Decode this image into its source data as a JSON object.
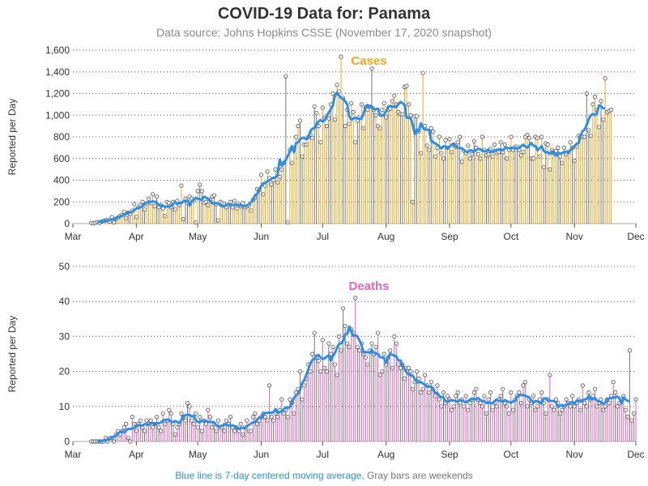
{
  "title": "COVID-19 Data for: Panama",
  "subtitle": "Data source: Johns Hopkins CSSE (November 17, 2020 snapshot)",
  "footnote": {
    "blue_part": "Blue line is 7-day centered moving average,",
    "gray_part": "Gray bars are weekends"
  },
  "colors": {
    "cases": "#f0a81e",
    "deaths": "#e466b4",
    "average": "#2b8ee8",
    "weekend": "#777777"
  },
  "chart_data": [
    {
      "type": "bar",
      "title": "Cases",
      "ylabel": "Reported per Day",
      "ylim": [
        0,
        1600
      ],
      "yticks": [
        "0",
        "200",
        "400",
        "600",
        "800",
        "1,000",
        "1,200",
        "1,400",
        "1,600"
      ],
      "ytick_values": [
        0,
        200,
        400,
        600,
        800,
        1000,
        1200,
        1400,
        1600
      ],
      "xlim": [
        "2020-03-01",
        "2020-12-01"
      ],
      "xticks": [
        "Mar",
        "Apr",
        "May",
        "Jun",
        "Jul",
        "Aug",
        "Sep",
        "Oct",
        "Nov",
        "Dec"
      ],
      "xtick_dates": [
        "2020-03-01",
        "2020-04-01",
        "2020-05-01",
        "2020-06-01",
        "2020-07-01",
        "2020-08-01",
        "2020-09-01",
        "2020-10-01",
        "2020-11-01",
        "2020-12-01"
      ],
      "grid": "horizontal dotted",
      "first_date": "2020-03-10",
      "values": [
        5,
        3,
        8,
        14,
        5,
        20,
        25,
        30,
        35,
        20,
        60,
        10,
        45,
        55,
        70,
        80,
        110,
        50,
        100,
        90,
        120,
        180,
        60,
        150,
        170,
        200,
        130,
        180,
        230,
        190,
        270,
        160,
        250,
        150,
        170,
        140,
        70,
        200,
        190,
        150,
        200,
        130,
        210,
        170,
        350,
        40,
        230,
        190,
        250,
        230,
        210,
        10,
        300,
        360,
        300,
        190,
        200,
        170,
        220,
        250,
        260,
        180,
        30,
        200,
        190,
        180,
        150,
        170,
        200,
        150,
        210,
        140,
        180,
        160,
        190,
        150,
        160,
        170,
        120,
        220,
        240,
        320,
        310,
        450,
        270,
        350,
        480,
        420,
        360,
        400,
        500,
        380,
        430,
        500,
        560,
        1360,
        10,
        680,
        560,
        700,
        800,
        900,
        950,
        620,
        730,
        730,
        800,
        820,
        790,
        1080,
        1020,
        900,
        750,
        1070,
        980,
        900,
        970,
        1100,
        1200,
        960,
        1280,
        1220,
        1540,
        1160,
        900,
        1050,
        920,
        1110,
        1030,
        750,
        950,
        980,
        1100,
        880,
        1070,
        1050,
        1080,
        1430,
        1050,
        1000,
        900,
        880,
        1050,
        1110,
        980,
        1050,
        1060,
        1130,
        1180,
        1100,
        1030,
        1010,
        1010,
        1260,
        1270,
        1100,
        1000,
        200,
        990,
        990,
        850,
        650,
        1390,
        900,
        720,
        680,
        880,
        850,
        620,
        700,
        800,
        650,
        600,
        770,
        700,
        780,
        660,
        730,
        710,
        750,
        800,
        570,
        670,
        650,
        720,
        600,
        640,
        760,
        700,
        640,
        600,
        800,
        680,
        630,
        640,
        690,
        620,
        730,
        650,
        660,
        750,
        660,
        730,
        600,
        680,
        800,
        680,
        710,
        710,
        680,
        630,
        660,
        800,
        820,
        790,
        600,
        600,
        800,
        790,
        620,
        800,
        520,
        740,
        730,
        500,
        680,
        650,
        670,
        700,
        620,
        560,
        700,
        640,
        660,
        750,
        700,
        580,
        710,
        810,
        800,
        800,
        800,
        1200,
        860,
        810,
        1100,
        1170,
        1050,
        890,
        1130,
        960,
        1340,
        1030,
        1040,
        1050
      ]
    },
    {
      "type": "bar",
      "title": "Deaths",
      "ylabel": "Reported per Day",
      "ylim": [
        0,
        50
      ],
      "yticks": [
        "0",
        "10",
        "20",
        "30",
        "40",
        "50"
      ],
      "ytick_values": [
        0,
        10,
        20,
        30,
        40,
        50
      ],
      "xlim": [
        "2020-03-01",
        "2020-12-01"
      ],
      "xticks": [
        "Mar",
        "Apr",
        "May",
        "Jun",
        "Jul",
        "Aug",
        "Sep",
        "Oct",
        "Nov",
        "Dec"
      ],
      "xtick_dates": [
        "2020-03-01",
        "2020-04-01",
        "2020-05-01",
        "2020-06-01",
        "2020-07-01",
        "2020-08-01",
        "2020-09-01",
        "2020-10-01",
        "2020-11-01",
        "2020-12-01"
      ],
      "grid": "horizontal dotted",
      "first_date": "2020-03-10",
      "values": [
        0,
        0,
        0,
        0,
        0,
        0,
        0,
        1,
        0,
        1,
        1,
        0,
        2,
        3,
        2,
        3,
        4,
        5,
        1,
        0,
        7,
        5,
        3,
        5,
        6,
        4,
        3,
        6,
        5,
        6,
        4,
        5,
        7,
        4,
        3,
        8,
        5,
        6,
        9,
        8,
        5,
        2,
        4,
        5,
        8,
        7,
        6,
        11,
        10,
        6,
        5,
        8,
        4,
        7,
        3,
        6,
        5,
        9,
        7,
        4,
        5,
        3,
        6,
        4,
        4,
        3,
        6,
        5,
        7,
        4,
        3,
        4,
        3,
        5,
        2,
        4,
        6,
        3,
        3,
        7,
        8,
        5,
        6,
        7,
        8,
        7,
        6,
        16,
        7,
        6,
        8,
        7,
        9,
        12,
        8,
        9,
        7,
        12,
        11,
        8,
        14,
        15,
        20,
        12,
        16,
        18,
        22,
        20,
        25,
        31,
        24,
        23,
        20,
        29,
        21,
        20,
        28,
        25,
        27,
        22,
        19,
        30,
        26,
        38,
        33,
        28,
        27,
        32,
        31,
        41,
        27,
        26,
        28,
        25,
        24,
        22,
        26,
        28,
        25,
        27,
        31,
        19,
        20,
        25,
        22,
        24,
        26,
        21,
        30,
        28,
        22,
        21,
        22,
        18,
        21,
        21,
        20,
        15,
        17,
        20,
        18,
        14,
        15,
        19,
        16,
        14,
        17,
        15,
        13,
        16,
        12,
        10,
        14,
        11,
        13,
        12,
        9,
        10,
        13,
        14,
        11,
        12,
        10,
        13,
        9,
        11,
        12,
        14,
        15,
        12,
        11,
        10,
        13,
        8,
        12,
        14,
        9,
        11,
        10,
        12,
        13,
        15,
        11,
        10,
        8,
        14,
        9,
        12,
        13,
        14,
        11,
        16,
        17,
        10,
        12,
        11,
        13,
        9,
        10,
        12,
        14,
        11,
        8,
        12,
        19,
        10,
        9,
        12,
        11,
        8,
        9,
        10,
        12,
        11,
        10,
        13,
        10,
        11,
        12,
        9,
        16,
        11,
        10,
        14,
        12,
        13,
        15,
        10,
        11,
        12,
        9,
        10,
        12,
        11,
        13,
        17,
        14,
        10,
        11,
        12,
        13,
        9,
        7,
        26,
        6,
        8,
        12
      ]
    }
  ]
}
